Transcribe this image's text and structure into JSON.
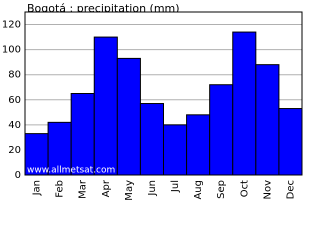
{
  "chart_data": {
    "type": "bar",
    "title": "Bogotá : precipitation (mm)",
    "categories": [
      "Jan",
      "Feb",
      "Mar",
      "Apr",
      "May",
      "Jun",
      "Jul",
      "Aug",
      "Sep",
      "Oct",
      "Nov",
      "Dec"
    ],
    "values": [
      33,
      42,
      65,
      110,
      93,
      57,
      40,
      48,
      72,
      114,
      88,
      53
    ],
    "color": "#0000ff",
    "ylim": [
      0,
      130
    ],
    "yticks": [
      0,
      20,
      40,
      60,
      80,
      100,
      120
    ],
    "grid": true,
    "watermark": "www.allmetsat.com"
  }
}
